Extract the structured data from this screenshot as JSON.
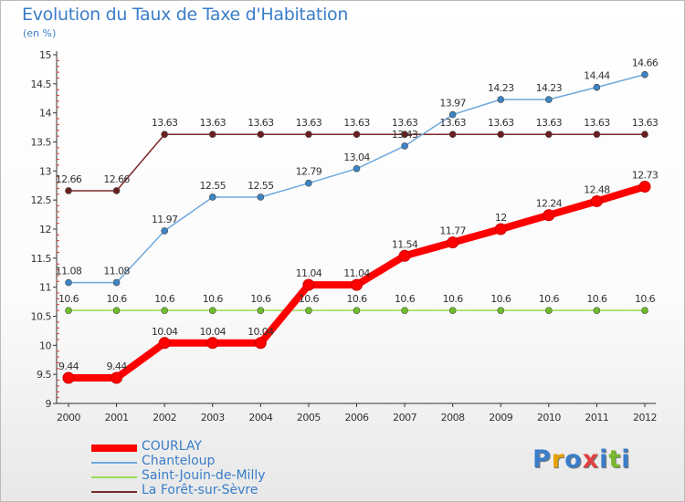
{
  "header": {
    "title": "Evolution du Taux de Taxe d'Habitation",
    "unit": "(en %)"
  },
  "logo": {
    "text": "Proxiti",
    "colors": [
      "#3a7dc9",
      "#e8a000",
      "#3a7dc9",
      "#e04040",
      "#3a7dc9",
      "#7ab82e",
      "#3a7dc9"
    ]
  },
  "chart_data": {
    "type": "line",
    "title": "Evolution du Taux de Taxe d'Habitation",
    "ylabel": "(en %)",
    "xlabel": "",
    "x": [
      "2000",
      "2001",
      "2002",
      "2003",
      "2004",
      "2005",
      "2006",
      "2007",
      "2008",
      "2009",
      "2010",
      "2011",
      "2012"
    ],
    "ylim": [
      9,
      15
    ],
    "yticks": [
      "9",
      "9.5",
      "10",
      "10.5",
      "11",
      "11.5",
      "12",
      "12.5",
      "13",
      "13.5",
      "14",
      "14.5",
      "15"
    ],
    "legend_position": "bottom-left",
    "series": [
      {
        "name": "COURLAY",
        "color": "#ff0000",
        "width": 8,
        "values": [
          9.44,
          9.44,
          10.04,
          10.04,
          10.04,
          11.04,
          11.04,
          11.54,
          11.77,
          12,
          12.24,
          12.48,
          12.73
        ],
        "labels": [
          "9.44",
          "9.44",
          "10.04",
          "10.04",
          "10.04",
          "11.04",
          "11.04",
          "11.54",
          "11.77",
          "12",
          "12.24",
          "12.48",
          "12.73"
        ]
      },
      {
        "name": "Chanteloup",
        "color": "#6fa8dc",
        "width": 1.5,
        "values": [
          11.08,
          11.08,
          11.97,
          12.55,
          12.55,
          12.79,
          13.04,
          13.43,
          13.97,
          14.23,
          14.23,
          14.44,
          14.66
        ],
        "labels": [
          "11.08",
          "11.08",
          "11.97",
          "12.55",
          "12.55",
          "12.79",
          "13.04",
          "13.43",
          "13.97",
          "14.23",
          "14.23",
          "14.44",
          "14.66"
        ]
      },
      {
        "name": "Saint-Jouin-de-Milly",
        "color": "#99dd55",
        "width": 1.5,
        "values": [
          10.6,
          10.6,
          10.6,
          10.6,
          10.6,
          10.6,
          10.6,
          10.6,
          10.6,
          10.6,
          10.6,
          10.6,
          10.6
        ],
        "labels": [
          "10.6",
          "10.6",
          "10.6",
          "10.6",
          "10.6",
          "10.6",
          "10.6",
          "10.6",
          "10.6",
          "10.6",
          "10.6",
          "10.6",
          "10.6"
        ]
      },
      {
        "name": "La Forêt-sur-Sèvre",
        "color": "#7a2a2a",
        "width": 1.5,
        "values": [
          12.66,
          12.66,
          13.63,
          13.63,
          13.63,
          13.63,
          13.63,
          13.63,
          13.63,
          13.63,
          13.63,
          13.63,
          13.63
        ],
        "labels": [
          "12.66",
          "12.66",
          "13.63",
          "13.63",
          "13.63",
          "13.63",
          "13.63",
          "13.63",
          "13.63",
          "13.63",
          "13.63",
          "13.63",
          "13.63"
        ]
      }
    ]
  }
}
